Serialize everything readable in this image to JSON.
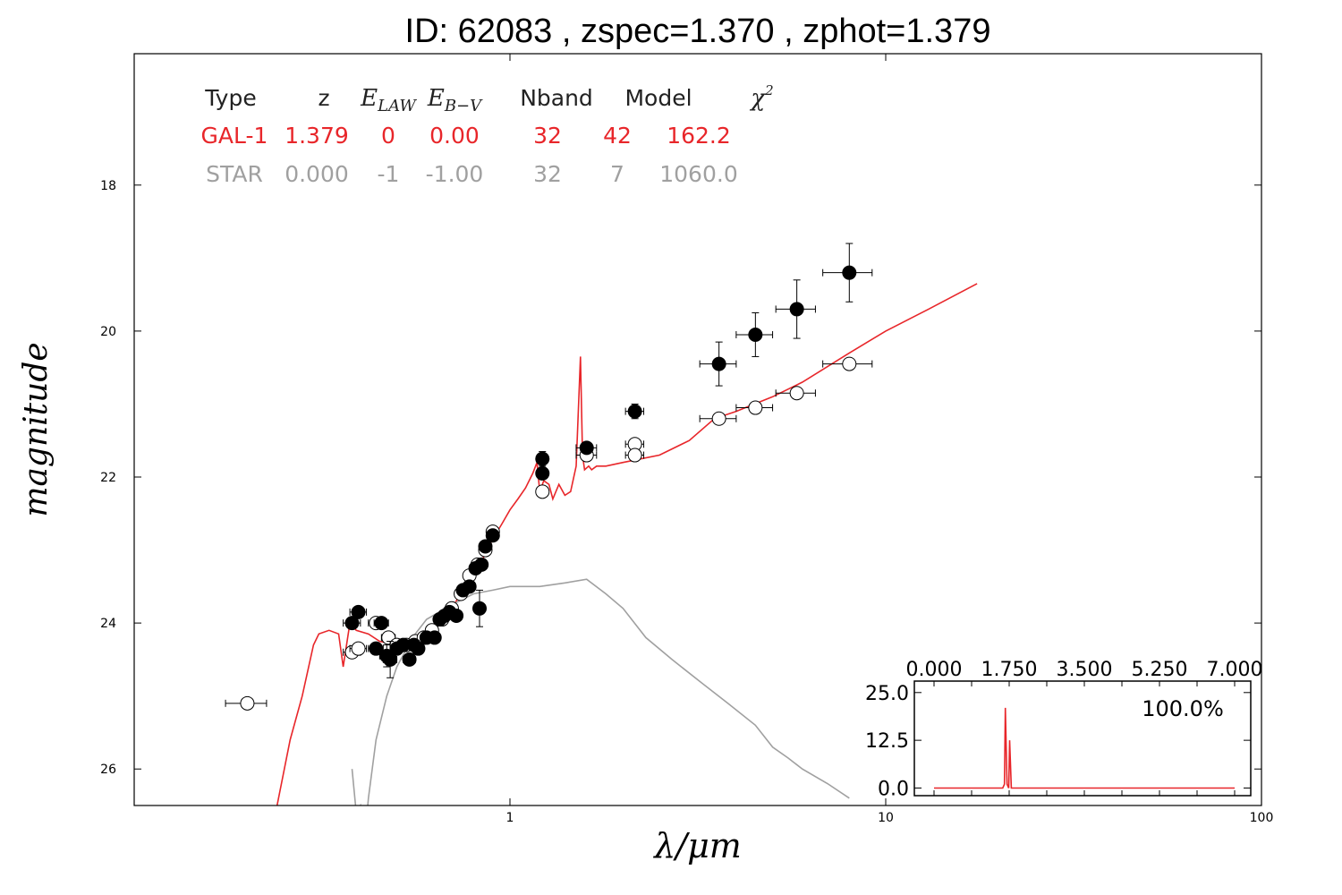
{
  "title": "ID:  62083 , zspec=1.370 , zphot=1.379",
  "chart_data": {
    "type": "scatter",
    "xlabel": "λ/μm",
    "ylabel": "magnitude",
    "xscale": "log",
    "xlim": [
      0.1,
      100
    ],
    "ylim": [
      26.5,
      16.2
    ],
    "x_ticks": [
      "1",
      "10",
      "100"
    ],
    "y_ticks": [
      "18",
      "20",
      "22",
      "24",
      "26"
    ],
    "colors": {
      "galaxy": "#e8262a",
      "star": "#a0a0a0",
      "observed": "#000000"
    },
    "info_table": {
      "headers": [
        "Type",
        "z",
        "E_LAW",
        "E_B-V",
        "Nband",
        "Model",
        "χ²"
      ],
      "rows": [
        {
          "name": "GAL-1",
          "color": "#e8262a",
          "cells": [
            "GAL-1",
            "1.379",
            "0",
            "0.00",
            "32",
            "42",
            "162.2"
          ]
        },
        {
          "name": "STAR",
          "color": "#a0a0a0",
          "cells": [
            "STAR",
            "0.000",
            "-1",
            "-1.00",
            "32",
            "7",
            "1060.0"
          ]
        }
      ]
    },
    "series": [
      {
        "name": "GAL-1",
        "style": "line",
        "color": "#e8262a",
        "x": [
          0.24,
          0.26,
          0.28,
          0.3,
          0.31,
          0.33,
          0.35,
          0.36,
          0.375,
          0.39,
          0.42,
          0.45,
          0.5,
          0.55,
          0.6,
          0.65,
          0.7,
          0.75,
          0.8,
          0.85,
          0.9,
          0.95,
          1.0,
          1.05,
          1.1,
          1.15,
          1.18,
          1.2,
          1.23,
          1.27,
          1.3,
          1.35,
          1.4,
          1.45,
          1.5,
          1.54,
          1.56,
          1.58,
          1.62,
          1.65,
          1.7,
          1.8,
          2.0,
          2.5,
          3.0,
          3.5,
          4.0,
          5.0,
          6.0,
          8.0,
          10.0,
          13.0,
          17.5
        ],
        "y": [
          26.5,
          25.6,
          25.0,
          24.3,
          24.15,
          24.1,
          24.15,
          24.6,
          24.0,
          24.1,
          24.15,
          24.25,
          24.3,
          24.2,
          24.1,
          23.95,
          23.8,
          23.55,
          23.35,
          23.1,
          22.85,
          22.65,
          22.45,
          22.3,
          22.15,
          21.95,
          21.8,
          22.2,
          22.05,
          22.1,
          22.3,
          22.1,
          22.25,
          22.2,
          21.85,
          20.35,
          21.7,
          21.9,
          21.85,
          21.9,
          21.85,
          21.85,
          21.8,
          21.7,
          21.5,
          21.2,
          21.1,
          20.9,
          20.7,
          20.3,
          20.0,
          19.7,
          19.35
        ]
      },
      {
        "name": "STAR",
        "style": "line",
        "color": "#a0a0a0",
        "x": [
          0.38,
          0.39,
          0.4,
          0.41,
          0.42,
          0.44,
          0.47,
          0.5,
          0.55,
          0.6,
          0.7,
          0.8,
          0.9,
          1.0,
          1.1,
          1.2,
          1.4,
          1.6,
          1.8,
          2.0,
          2.3,
          2.7,
          3.2,
          3.8,
          4.5,
          5.0,
          5.5,
          6.0,
          7.0,
          8.0
        ],
        "y": [
          26.0,
          26.6,
          26.5,
          27.0,
          26.4,
          25.6,
          25.0,
          24.6,
          24.2,
          23.95,
          23.75,
          23.6,
          23.55,
          23.5,
          23.5,
          23.5,
          23.45,
          23.4,
          23.6,
          23.8,
          24.2,
          24.5,
          24.8,
          25.1,
          25.4,
          25.7,
          25.85,
          26.0,
          26.2,
          26.4
        ]
      },
      {
        "name": "observed",
        "style": "points",
        "marker": "filled-circle",
        "points": [
          {
            "x": 0.38,
            "y": 24.0,
            "xerr": 0.02,
            "yerr": 0.06
          },
          {
            "x": 0.395,
            "y": 23.85,
            "xerr": 0.02,
            "yerr": 0.05
          },
          {
            "x": 0.44,
            "y": 24.35,
            "xerr": 0.02,
            "yerr": 0.08
          },
          {
            "x": 0.455,
            "y": 24.0,
            "xerr": 0.02,
            "yerr": 0.05
          },
          {
            "x": 0.47,
            "y": 24.45,
            "xerr": 0.02,
            "yerr": 0.15
          },
          {
            "x": 0.48,
            "y": 24.5,
            "xerr": 0.02,
            "yerr": 0.25
          },
          {
            "x": 0.5,
            "y": 24.35,
            "xerr": 0.02,
            "yerr": 0.08
          },
          {
            "x": 0.52,
            "y": 24.3,
            "xerr": 0.02,
            "yerr": 0.06
          },
          {
            "x": 0.54,
            "y": 24.5,
            "xerr": 0.02,
            "yerr": 0.06
          },
          {
            "x": 0.555,
            "y": 24.3,
            "xerr": 0.02,
            "yerr": 0.06
          },
          {
            "x": 0.57,
            "y": 24.35,
            "xerr": 0.02,
            "yerr": 0.05
          },
          {
            "x": 0.6,
            "y": 24.2,
            "xerr": 0.02,
            "yerr": 0.05
          },
          {
            "x": 0.63,
            "y": 24.2,
            "xerr": 0.02,
            "yerr": 0.05
          },
          {
            "x": 0.65,
            "y": 23.95,
            "xerr": 0.02,
            "yerr": 0.05
          },
          {
            "x": 0.67,
            "y": 23.9,
            "xerr": 0.02,
            "yerr": 0.05
          },
          {
            "x": 0.69,
            "y": 23.85,
            "xerr": 0.02,
            "yerr": 0.05
          },
          {
            "x": 0.72,
            "y": 23.9,
            "xerr": 0.02,
            "yerr": 0.05
          },
          {
            "x": 0.75,
            "y": 23.55,
            "xerr": 0.02,
            "yerr": 0.05
          },
          {
            "x": 0.78,
            "y": 23.5,
            "xerr": 0.02,
            "yerr": 0.05
          },
          {
            "x": 0.81,
            "y": 23.25,
            "xerr": 0.02,
            "yerr": 0.05
          },
          {
            "x": 0.84,
            "y": 23.2,
            "xerr": 0.02,
            "yerr": 0.05
          },
          {
            "x": 0.86,
            "y": 22.95,
            "xerr": 0.02,
            "yerr": 0.05
          },
          {
            "x": 0.9,
            "y": 22.8,
            "xerr": 0.03,
            "yerr": 0.05
          },
          {
            "x": 0.83,
            "y": 23.8,
            "xerr": 0.02,
            "yerr": 0.25
          },
          {
            "x": 1.22,
            "y": 21.95,
            "xerr": 0.04,
            "yerr": 0.05
          },
          {
            "x": 1.22,
            "y": 21.75,
            "xerr": 0.04,
            "yerr": 0.1
          },
          {
            "x": 1.6,
            "y": 21.6,
            "xerr": 0.1,
            "yerr": 0.05
          },
          {
            "x": 2.15,
            "y": 21.1,
            "xerr": 0.12,
            "yerr": 0.1
          },
          {
            "x": 3.6,
            "y": 20.45,
            "xerr": 0.4,
            "yerr": 0.3
          },
          {
            "x": 4.5,
            "y": 20.05,
            "xerr": 0.5,
            "yerr": 0.3
          },
          {
            "x": 5.8,
            "y": 19.7,
            "xerr": 0.7,
            "yerr": 0.4
          },
          {
            "x": 8.0,
            "y": 19.2,
            "xerr": 1.2,
            "yerr": 0.4
          }
        ]
      },
      {
        "name": "model",
        "style": "points",
        "marker": "open-circle",
        "points": [
          {
            "x": 0.2,
            "y": 25.1,
            "xerr": 0.025
          },
          {
            "x": 0.38,
            "y": 24.4,
            "xerr": 0.02
          },
          {
            "x": 0.395,
            "y": 24.35,
            "xerr": 0.02
          },
          {
            "x": 0.44,
            "y": 24.0,
            "xerr": 0.02
          },
          {
            "x": 0.475,
            "y": 24.2,
            "xerr": 0.02
          },
          {
            "x": 0.5,
            "y": 24.3,
            "xerr": 0.02
          },
          {
            "x": 0.53,
            "y": 24.3,
            "xerr": 0.02
          },
          {
            "x": 0.56,
            "y": 24.25,
            "xerr": 0.02
          },
          {
            "x": 0.59,
            "y": 24.2,
            "xerr": 0.02
          },
          {
            "x": 0.62,
            "y": 24.1,
            "xerr": 0.02
          },
          {
            "x": 0.66,
            "y": 23.95,
            "xerr": 0.02
          },
          {
            "x": 0.7,
            "y": 23.8,
            "xerr": 0.02
          },
          {
            "x": 0.74,
            "y": 23.6,
            "xerr": 0.02
          },
          {
            "x": 0.78,
            "y": 23.35,
            "xerr": 0.02
          },
          {
            "x": 0.82,
            "y": 23.2,
            "xerr": 0.02
          },
          {
            "x": 0.86,
            "y": 23.0,
            "xerr": 0.02
          },
          {
            "x": 0.9,
            "y": 22.75,
            "xerr": 0.03
          },
          {
            "x": 1.22,
            "y": 22.2,
            "xerr": 0.04
          },
          {
            "x": 1.6,
            "y": 21.7,
            "xerr": 0.1
          },
          {
            "x": 2.15,
            "y": 21.55,
            "xerr": 0.12
          },
          {
            "x": 2.15,
            "y": 21.7,
            "xerr": 0.12
          },
          {
            "x": 3.6,
            "y": 21.2,
            "xerr": 0.4
          },
          {
            "x": 4.5,
            "y": 21.05,
            "xerr": 0.5
          },
          {
            "x": 5.8,
            "y": 20.85,
            "xerr": 0.7
          },
          {
            "x": 8.0,
            "y": 20.45,
            "xerr": 1.2
          }
        ]
      }
    ],
    "inset": {
      "type": "line",
      "x_ticks": [
        "0.000",
        "1.750",
        "3.500",
        "5.250",
        "7.000"
      ],
      "y_ticks": [
        "25.0",
        "12.5",
        "0.0"
      ],
      "xlim": [
        0,
        7
      ],
      "ylim": [
        -2,
        28
      ],
      "label": "100.0%",
      "color": "#e8262a",
      "x": [
        0.0,
        1.55,
        1.6,
        1.64,
        1.66,
        1.7,
        1.74,
        1.76,
        1.8,
        1.84,
        1.9,
        7.0
      ],
      "y": [
        0,
        0,
        0,
        1,
        21,
        1,
        0,
        12.5,
        0,
        0,
        0,
        0
      ]
    }
  }
}
